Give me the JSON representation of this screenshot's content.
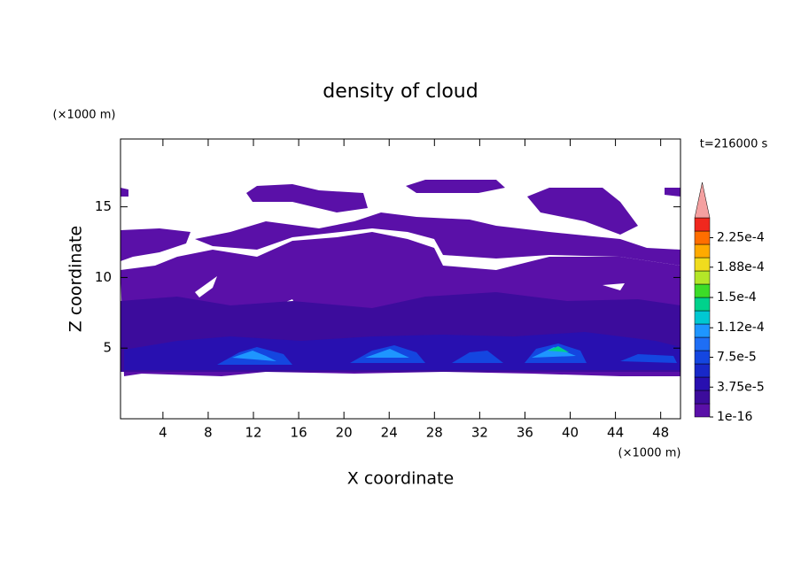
{
  "chart_data": {
    "type": "contour",
    "title": "density of cloud",
    "x_label": "X coordinate",
    "y_label": "Z coordinate",
    "x_unit": "(×1000 m)",
    "y_unit": "(×1000 m)",
    "annotation": "t=216000 s",
    "xlim": [
      0.25,
      49.75
    ],
    "xticks": [
      4,
      8,
      12,
      16,
      20,
      24,
      28,
      32,
      36,
      40,
      44,
      48
    ],
    "ylim": [
      0,
      19.8
    ],
    "yticks": [
      5,
      10,
      15
    ],
    "colorbar": {
      "lim": [
        0,
        0.00025
      ],
      "colors": [
        "#5a10a8",
        "#3c0c9c",
        "#2810b0",
        "#1828c8",
        "#1446e0",
        "#1e6ef5",
        "#1e96ff",
        "#00c8d2",
        "#00d28c",
        "#3cdc28",
        "#b4e628",
        "#f0dc1e",
        "#ffaa00",
        "#ff6e00",
        "#f0281e"
      ],
      "over_color": "#f4a0a0",
      "ticks": [
        {
          "value": 1e-16,
          "label": "1e-16"
        },
        {
          "value": 3.75e-05,
          "label": "3.75e-5"
        },
        {
          "value": 7.5e-05,
          "label": "7.5e-5"
        },
        {
          "value": 0.000112,
          "label": "1.12e-4"
        },
        {
          "value": 0.00015,
          "label": "1.5e-4"
        },
        {
          "value": 0.000188,
          "label": "1.88e-4"
        },
        {
          "value": 0.000225,
          "label": "2.25e-4"
        }
      ]
    }
  }
}
